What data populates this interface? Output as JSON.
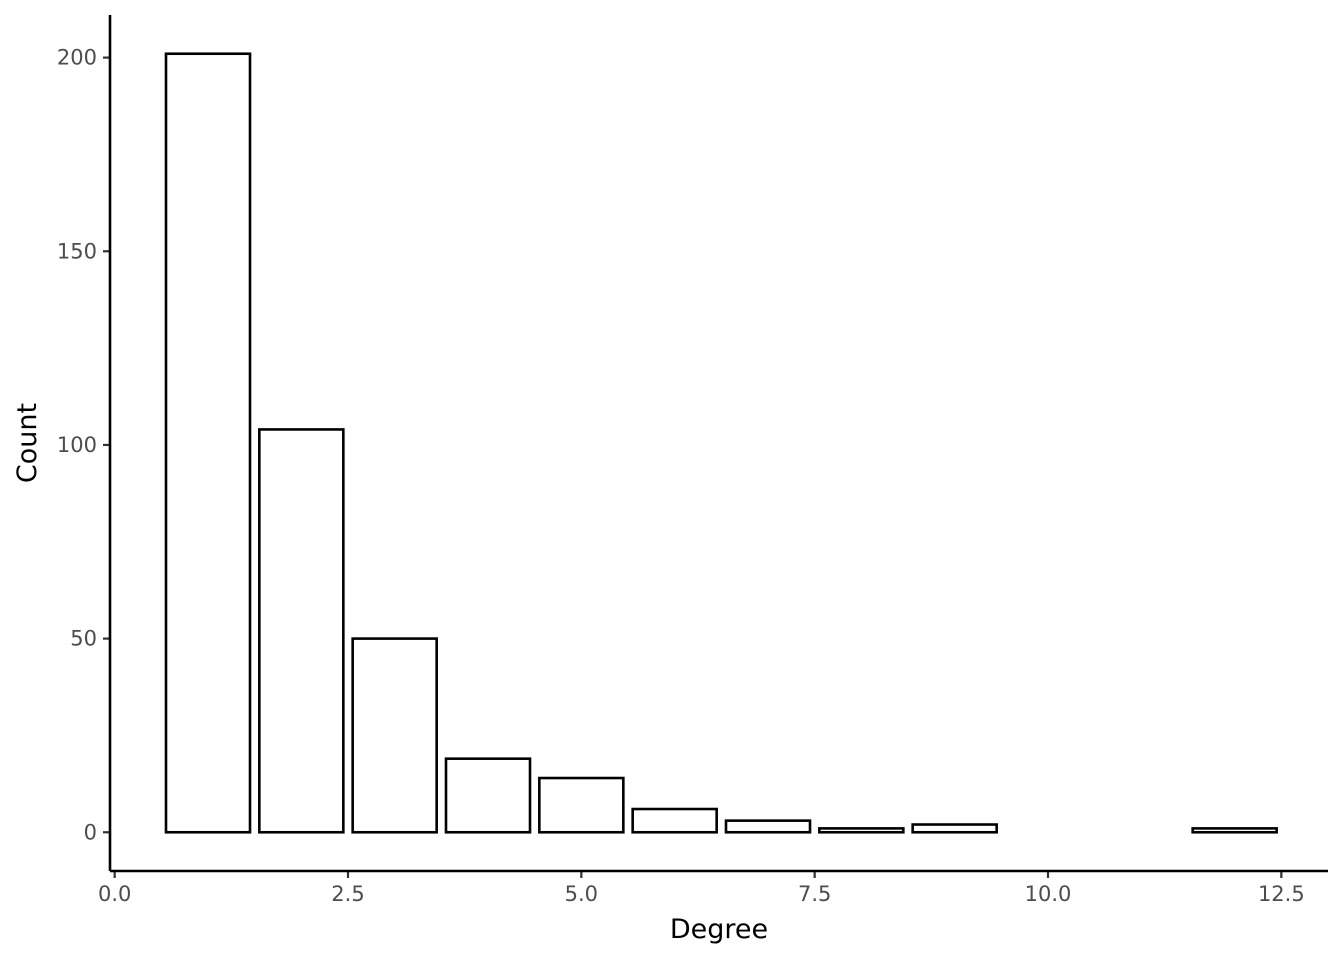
{
  "chart_data": {
    "type": "bar",
    "title": "",
    "xlabel": "Degree",
    "ylabel": "Count",
    "x": [
      1,
      2,
      3,
      4,
      5,
      6,
      7,
      8,
      9,
      12
    ],
    "values": [
      201,
      104,
      50,
      19,
      14,
      6,
      3,
      1,
      2,
      1
    ],
    "xlim": [
      -0.05,
      13.0
    ],
    "ylim": [
      -10,
      211
    ],
    "xticks": [
      0.0,
      2.5,
      5.0,
      7.5,
      10.0,
      12.5
    ],
    "xtick_labels": [
      "0.0",
      "2.5",
      "5.0",
      "7.5",
      "10.0",
      "12.5"
    ],
    "yticks": [
      0,
      50,
      100,
      150,
      200
    ],
    "ytick_labels": [
      "0",
      "50",
      "100",
      "150",
      "200"
    ],
    "bar_width": 0.9,
    "grid": false,
    "legend": "none",
    "colors": {
      "bar_fill": "#ffffff",
      "bar_stroke": "#000000",
      "axis": "#000000",
      "tick_text": "#4d4d4d"
    }
  }
}
